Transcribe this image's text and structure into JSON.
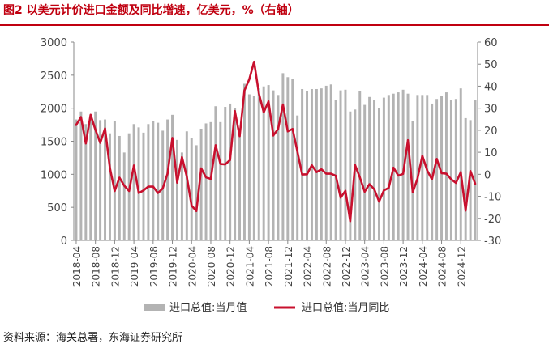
{
  "title": "图2  以美元计价进口金额及同比增速，亿美元，%（右轴）",
  "source": "资料来源：海关总署，东海证券研究所",
  "colors": {
    "bar": "#b3b3b3",
    "line": "#c8102e",
    "accent": "#c00010"
  },
  "chart_data": {
    "type": "bar+line",
    "title": "图2  以美元计价进口金额及同比增速，亿美元，%（右轴）",
    "x": [
      "2018-04",
      "2018-05",
      "2018-06",
      "2018-07",
      "2018-08",
      "2018-09",
      "2018-10",
      "2018-11",
      "2018-12",
      "2019-01",
      "2019-02",
      "2019-03",
      "2019-04",
      "2019-05",
      "2019-06",
      "2019-07",
      "2019-08",
      "2019-09",
      "2019-10",
      "2019-11",
      "2019-12",
      "2020-01",
      "2020-02",
      "2020-03",
      "2020-04",
      "2020-05",
      "2020-06",
      "2020-07",
      "2020-08",
      "2020-09",
      "2020-10",
      "2020-11",
      "2020-12",
      "2021-01",
      "2021-02",
      "2021-03",
      "2021-04",
      "2021-05",
      "2021-06",
      "2021-07",
      "2021-08",
      "2021-09",
      "2021-10",
      "2021-11",
      "2021-12",
      "2022-01",
      "2022-02",
      "2022-03",
      "2022-04",
      "2022-05",
      "2022-06",
      "2022-07",
      "2022-08",
      "2022-09",
      "2022-10",
      "2022-11",
      "2022-12",
      "2023-01",
      "2023-02",
      "2023-03",
      "2023-04",
      "2023-05",
      "2023-06",
      "2023-07",
      "2023-08",
      "2023-09",
      "2023-10",
      "2023-11",
      "2023-12",
      "2024-01",
      "2024-02",
      "2024-03",
      "2024-04",
      "2024-05",
      "2024-06",
      "2024-07",
      "2024-08",
      "2024-09",
      "2024-10",
      "2024-11",
      "2024-12",
      "2025-01",
      "2025-02",
      "2025-03"
    ],
    "x_ticks": [
      "2018-04",
      "2018-08",
      "2018-12",
      "2019-04",
      "2019-08",
      "2019-12",
      "2020-04",
      "2020-08",
      "2020-12",
      "2021-04",
      "2021-08",
      "2021-12",
      "2022-04",
      "2022-08",
      "2022-12",
      "2023-04",
      "2023-08",
      "2023-12",
      "2024-04",
      "2024-08",
      "2024-12"
    ],
    "series": [
      {
        "name": "进口总值:当月值",
        "type": "bar",
        "axis": "left",
        "values": [
          1830,
          1950,
          1760,
          1890,
          1950,
          1820,
          1830,
          1620,
          1800,
          1580,
          1330,
          1620,
          1760,
          1710,
          1630,
          1760,
          1800,
          1780,
          1660,
          1830,
          1900,
          1520,
          1330,
          1650,
          1550,
          1440,
          1690,
          1770,
          1790,
          2030,
          1790,
          2020,
          2070,
          2000,
          1700,
          2370,
          2210,
          2190,
          2300,
          2330,
          2350,
          2270,
          2200,
          2530,
          2470,
          2440,
          1890,
          2290,
          2260,
          2290,
          2290,
          2300,
          2340,
          2360,
          2130,
          2270,
          2280,
          1950,
          1980,
          2260,
          2050,
          2170,
          2130,
          2000,
          2160,
          2200,
          2220,
          2240,
          2280,
          2220,
          1810,
          2200,
          2200,
          2200,
          2070,
          2140,
          2180,
          2240,
          2130,
          2140,
          2300,
          1850,
          1820,
          2120
        ]
      },
      {
        "name": "进口总值:当月同比",
        "type": "line",
        "axis": "right",
        "values": [
          22.4,
          26.0,
          14.0,
          27.0,
          20.2,
          14.3,
          20.8,
          3.0,
          -7.6,
          -1.5,
          -5.2,
          -7.6,
          4.0,
          -8.5,
          -7.3,
          -5.6,
          -5.6,
          -8.5,
          -6.4,
          0.3,
          16.5,
          -3.8,
          7.8,
          -1.0,
          -14.2,
          -16.7,
          2.7,
          -1.4,
          -2.1,
          13.2,
          4.7,
          4.5,
          6.5,
          28.7,
          17.3,
          38.1,
          43.1,
          51.1,
          36.7,
          28.1,
          33.1,
          17.6,
          20.6,
          31.7,
          19.5,
          20.6,
          10.4,
          -0.1,
          0.0,
          4.1,
          1.0,
          2.3,
          0.3,
          0.3,
          -0.7,
          -10.6,
          -7.5,
          -21.3,
          4.2,
          -1.4,
          -7.9,
          -4.5,
          -6.8,
          -12.4,
          -7.3,
          -6.2,
          3.0,
          -0.6,
          0.2,
          15.5,
          -8.2,
          -1.9,
          8.4,
          1.8,
          -2.3,
          7.0,
          0.5,
          0.3,
          -2.3,
          -3.9,
          1.0,
          -16.5,
          1.5,
          -4.3
        ]
      }
    ],
    "y_left": {
      "min": 0,
      "max": 3000,
      "ticks": [
        "0",
        "500",
        "1000",
        "1500",
        "2000",
        "2500",
        "3000"
      ]
    },
    "y_right": {
      "min": -30,
      "max": 60,
      "ticks": [
        "-30",
        "-20",
        "-10",
        "0",
        "10",
        "20",
        "30",
        "40",
        "50",
        "60"
      ]
    },
    "legend": {
      "position": "bottom",
      "bar_label": "进口总值:当月值",
      "line_label": "进口总值:当月同比"
    },
    "grid": false
  }
}
